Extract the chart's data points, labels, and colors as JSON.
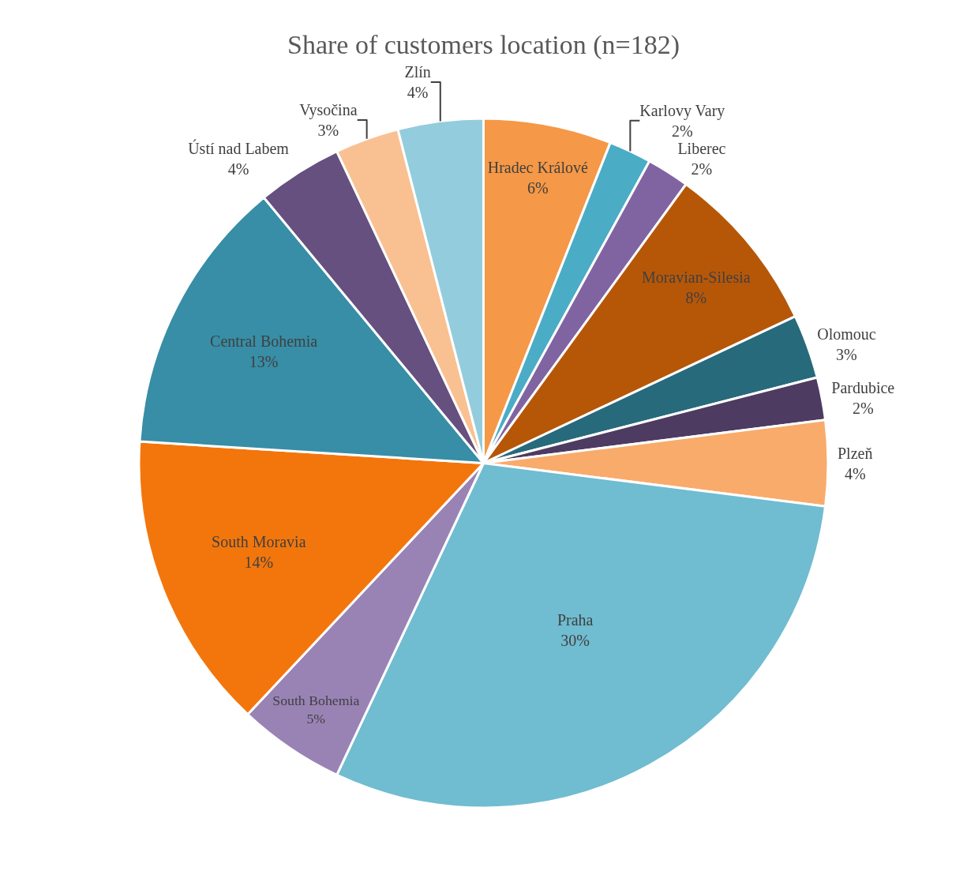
{
  "chart_data": {
    "type": "pie",
    "title": "Share of customers location (n=182)",
    "categories": [
      "Hradec Králové",
      "Karlovy Vary",
      "Liberec",
      "Moravian-Silesia",
      "Olomouc",
      "Pardubice",
      "Plzeň",
      "Praha",
      "South Bohemia",
      "South Moravia",
      "Central Bohemia",
      "Ústí nad Labem",
      "Vysočina",
      "Zlín"
    ],
    "values": [
      6,
      2,
      2,
      8,
      3,
      2,
      4,
      30,
      5,
      14,
      13,
      4,
      3,
      4
    ],
    "value_labels": [
      "6%",
      "2%",
      "2%",
      "8%",
      "3%",
      "2%",
      "4%",
      "30%",
      "5%",
      "14%",
      "13%",
      "4%",
      "3%",
      "4%"
    ],
    "colors": [
      "#f59847",
      "#4bacc6",
      "#8064a2",
      "#b65708",
      "#276a7c",
      "#4d3b62",
      "#f9ab6b",
      "#70bcd1",
      "#9983b5",
      "#f3760c",
      "#378ea6",
      "#66507f",
      "#f9c192",
      "#93cddd"
    ],
    "legend": false
  }
}
